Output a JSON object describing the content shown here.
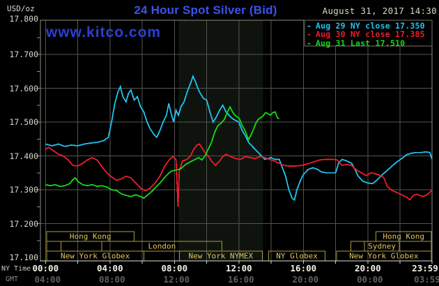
{
  "header": {
    "unit": "USD/oz",
    "title": "24 Hour Spot Silver (Bid)",
    "datetime": "August 31, 2017 14:30",
    "watermark": "www.kitco.com"
  },
  "legend": [
    {
      "label": "Aug 29 NY close 17.350",
      "color": "#1fc4f4"
    },
    {
      "label": "Aug 30 NY close 17.385",
      "color": "#f11c2c"
    },
    {
      "label": "Aug 31 Last 17.510",
      "color": "#14dc14"
    }
  ],
  "y_axis": {
    "tick_labels": [
      "17.800",
      "17.700",
      "17.600",
      "17.500",
      "17.400",
      "17.300",
      "17.200",
      "17.100"
    ],
    "tick_values": [
      17.8,
      17.7,
      17.6,
      17.5,
      17.4,
      17.3,
      17.2,
      17.1
    ]
  },
  "x_axis": {
    "ny_caption": "NY Time",
    "gmt_caption": "GMT",
    "ticks": [
      {
        "t": 0,
        "ny": "00:00",
        "gmt": "04:00"
      },
      {
        "t": 4,
        "ny": "04:00",
        "gmt": "08:00"
      },
      {
        "t": 8,
        "ny": "08:00",
        "gmt": "12:00"
      },
      {
        "t": 12,
        "ny": "12:00",
        "gmt": "16:00"
      },
      {
        "t": 16,
        "ny": "16:00",
        "gmt": "20:00"
      },
      {
        "t": 20,
        "ny": "20:00",
        "gmt": "00:00"
      },
      {
        "t": 23.983,
        "ny": "23:59",
        "gmt": "03:59"
      }
    ]
  },
  "sessions": {
    "rows": [
      [
        {
          "start": 0.07,
          "end": 5.5,
          "label": "Hong Kong"
        },
        {
          "start": 20.5,
          "end": 23.94,
          "label": "Hong Kong"
        }
      ],
      [
        {
          "start": 0.07,
          "end": 0.95,
          "label": ""
        },
        {
          "start": 0.95,
          "end": 3.5,
          "label": ""
        },
        {
          "start": 3.5,
          "end": 10.95,
          "label": "London"
        },
        {
          "start": 18.95,
          "end": 19.8,
          "label": ""
        },
        {
          "start": 19.8,
          "end": 21.95,
          "label": "Sydney"
        },
        {
          "start": 21.95,
          "end": 23.94,
          "label": ""
        }
      ],
      [
        {
          "start": 0.07,
          "end": 6.1,
          "label": "New York Globex"
        },
        {
          "start": 6.1,
          "end": 8.3,
          "label": ""
        },
        {
          "start": 8.3,
          "end": 13.45,
          "label": "New York NYMEX"
        },
        {
          "start": 13.85,
          "end": 17.35,
          "label": "NY Globex"
        },
        {
          "start": 18.05,
          "end": 23.94,
          "label": "New York Globex"
        }
      ]
    ]
  },
  "chart_data": {
    "type": "line",
    "title": "24 Hour Spot Silver (Bid)",
    "ylabel": "USD/oz",
    "xlabel": "NY Time (hours)",
    "ylim": [
      17.1,
      17.8
    ],
    "xlim": [
      0,
      24
    ],
    "grid": true,
    "legend_position": "top-right",
    "highlight_band_hours": [
      8.25,
      13.5
    ],
    "series": [
      {
        "name": "Aug 29 NY close 17.350",
        "color": "#1fc4f4",
        "points": [
          [
            0,
            17.435
          ],
          [
            0.4,
            17.43
          ],
          [
            0.8,
            17.435
          ],
          [
            1.2,
            17.428
          ],
          [
            1.6,
            17.432
          ],
          [
            2,
            17.43
          ],
          [
            2.4,
            17.435
          ],
          [
            2.8,
            17.438
          ],
          [
            3.2,
            17.44
          ],
          [
            3.6,
            17.445
          ],
          [
            3.9,
            17.455
          ],
          [
            4.1,
            17.5
          ],
          [
            4.3,
            17.555
          ],
          [
            4.5,
            17.59
          ],
          [
            4.65,
            17.605
          ],
          [
            4.8,
            17.575
          ],
          [
            5,
            17.56
          ],
          [
            5.15,
            17.585
          ],
          [
            5.3,
            17.595
          ],
          [
            5.5,
            17.565
          ],
          [
            5.7,
            17.575
          ],
          [
            5.9,
            17.545
          ],
          [
            6.1,
            17.53
          ],
          [
            6.3,
            17.5
          ],
          [
            6.5,
            17.48
          ],
          [
            6.7,
            17.465
          ],
          [
            6.9,
            17.455
          ],
          [
            7.1,
            17.475
          ],
          [
            7.3,
            17.5
          ],
          [
            7.5,
            17.52
          ],
          [
            7.65,
            17.555
          ],
          [
            7.8,
            17.525
          ],
          [
            7.95,
            17.5
          ],
          [
            8.1,
            17.535
          ],
          [
            8.25,
            17.52
          ],
          [
            8.4,
            17.545
          ],
          [
            8.6,
            17.56
          ],
          [
            8.8,
            17.59
          ],
          [
            9,
            17.615
          ],
          [
            9.15,
            17.635
          ],
          [
            9.3,
            17.62
          ],
          [
            9.45,
            17.6
          ],
          [
            9.6,
            17.585
          ],
          [
            9.8,
            17.57
          ],
          [
            10,
            17.565
          ],
          [
            10.2,
            17.53
          ],
          [
            10.4,
            17.5
          ],
          [
            10.6,
            17.515
          ],
          [
            10.8,
            17.535
          ],
          [
            11,
            17.55
          ],
          [
            11.2,
            17.53
          ],
          [
            11.4,
            17.52
          ],
          [
            11.6,
            17.51
          ],
          [
            11.8,
            17.505
          ],
          [
            12,
            17.5
          ],
          [
            12.2,
            17.475
          ],
          [
            12.4,
            17.46
          ],
          [
            12.6,
            17.44
          ],
          [
            12.8,
            17.43
          ],
          [
            13,
            17.42
          ],
          [
            13.2,
            17.41
          ],
          [
            13.4,
            17.4
          ],
          [
            13.6,
            17.39
          ],
          [
            13.8,
            17.392
          ],
          [
            14,
            17.395
          ],
          [
            14.2,
            17.39
          ],
          [
            14.5,
            17.39
          ],
          [
            14.7,
            17.365
          ],
          [
            14.9,
            17.34
          ],
          [
            15.1,
            17.3
          ],
          [
            15.3,
            17.275
          ],
          [
            15.45,
            17.27
          ],
          [
            15.6,
            17.3
          ],
          [
            15.8,
            17.325
          ],
          [
            16,
            17.345
          ],
          [
            16.3,
            17.36
          ],
          [
            16.6,
            17.365
          ],
          [
            16.9,
            17.36
          ],
          [
            17.1,
            17.353
          ],
          [
            17.4,
            17.35
          ],
          [
            17.7,
            17.35
          ],
          [
            18,
            17.35
          ],
          [
            18.2,
            17.38
          ],
          [
            18.4,
            17.39
          ],
          [
            18.7,
            17.385
          ],
          [
            19,
            17.378
          ],
          [
            19.2,
            17.36
          ],
          [
            19.4,
            17.34
          ],
          [
            19.7,
            17.325
          ],
          [
            20,
            17.32
          ],
          [
            20.3,
            17.318
          ],
          [
            20.6,
            17.33
          ],
          [
            20.9,
            17.345
          ],
          [
            21.2,
            17.357
          ],
          [
            21.5,
            17.37
          ],
          [
            21.8,
            17.382
          ],
          [
            22.1,
            17.392
          ],
          [
            22.4,
            17.403
          ],
          [
            22.7,
            17.408
          ],
          [
            23,
            17.41
          ],
          [
            23.3,
            17.41
          ],
          [
            23.6,
            17.412
          ],
          [
            23.85,
            17.41
          ],
          [
            23.983,
            17.39
          ]
        ]
      },
      {
        "name": "Aug 30 NY close 17.385",
        "color": "#f11c2c",
        "points": [
          [
            0,
            17.42
          ],
          [
            0.2,
            17.425
          ],
          [
            0.5,
            17.415
          ],
          [
            0.8,
            17.405
          ],
          [
            1.1,
            17.4
          ],
          [
            1.4,
            17.388
          ],
          [
            1.7,
            17.372
          ],
          [
            2,
            17.37
          ],
          [
            2.3,
            17.378
          ],
          [
            2.6,
            17.388
          ],
          [
            2.9,
            17.395
          ],
          [
            3.2,
            17.388
          ],
          [
            3.5,
            17.368
          ],
          [
            3.8,
            17.35
          ],
          [
            4.1,
            17.338
          ],
          [
            4.4,
            17.328
          ],
          [
            4.7,
            17.332
          ],
          [
            5,
            17.34
          ],
          [
            5.3,
            17.335
          ],
          [
            5.6,
            17.32
          ],
          [
            5.9,
            17.305
          ],
          [
            6.2,
            17.297
          ],
          [
            6.5,
            17.305
          ],
          [
            6.8,
            17.32
          ],
          [
            7.1,
            17.34
          ],
          [
            7.4,
            17.37
          ],
          [
            7.7,
            17.39
          ],
          [
            7.9,
            17.398
          ],
          [
            8.1,
            17.39
          ],
          [
            8.18,
            17.3
          ],
          [
            8.22,
            17.25
          ],
          [
            8.3,
            17.355
          ],
          [
            8.5,
            17.385
          ],
          [
            8.8,
            17.39
          ],
          [
            9,
            17.4
          ],
          [
            9.2,
            17.42
          ],
          [
            9.4,
            17.432
          ],
          [
            9.55,
            17.435
          ],
          [
            9.7,
            17.425
          ],
          [
            9.9,
            17.41
          ],
          [
            10.1,
            17.4
          ],
          [
            10.3,
            17.385
          ],
          [
            10.55,
            17.372
          ],
          [
            10.8,
            17.385
          ],
          [
            11,
            17.398
          ],
          [
            11.2,
            17.405
          ],
          [
            11.5,
            17.398
          ],
          [
            11.8,
            17.392
          ],
          [
            12.1,
            17.39
          ],
          [
            12.4,
            17.398
          ],
          [
            12.7,
            17.395
          ],
          [
            13,
            17.392
          ],
          [
            13.3,
            17.398
          ],
          [
            13.6,
            17.395
          ],
          [
            13.9,
            17.39
          ],
          [
            14.2,
            17.385
          ],
          [
            14.5,
            17.378
          ],
          [
            14.8,
            17.372
          ],
          [
            15.1,
            17.37
          ],
          [
            15.5,
            17.37
          ],
          [
            15.9,
            17.372
          ],
          [
            16.3,
            17.377
          ],
          [
            16.7,
            17.383
          ],
          [
            17,
            17.388
          ],
          [
            17.4,
            17.39
          ],
          [
            17.8,
            17.39
          ],
          [
            18.1,
            17.388
          ],
          [
            18.4,
            17.372
          ],
          [
            18.7,
            17.375
          ],
          [
            19,
            17.372
          ],
          [
            19.3,
            17.358
          ],
          [
            19.6,
            17.35
          ],
          [
            19.9,
            17.342
          ],
          [
            20.2,
            17.35
          ],
          [
            20.5,
            17.347
          ],
          [
            20.8,
            17.342
          ],
          [
            21,
            17.335
          ],
          [
            21.2,
            17.31
          ],
          [
            21.5,
            17.298
          ],
          [
            21.8,
            17.292
          ],
          [
            22.1,
            17.285
          ],
          [
            22.4,
            17.278
          ],
          [
            22.6,
            17.27
          ],
          [
            22.8,
            17.282
          ],
          [
            23,
            17.287
          ],
          [
            23.2,
            17.284
          ],
          [
            23.4,
            17.28
          ],
          [
            23.6,
            17.283
          ],
          [
            23.8,
            17.29
          ],
          [
            23.983,
            17.3
          ]
        ]
      },
      {
        "name": "Aug 31 Last 17.510",
        "color": "#14dc14",
        "points": [
          [
            0,
            17.315
          ],
          [
            0.3,
            17.312
          ],
          [
            0.6,
            17.315
          ],
          [
            0.9,
            17.31
          ],
          [
            1.2,
            17.312
          ],
          [
            1.5,
            17.318
          ],
          [
            1.7,
            17.33
          ],
          [
            1.85,
            17.335
          ],
          [
            2,
            17.325
          ],
          [
            2.3,
            17.315
          ],
          [
            2.6,
            17.312
          ],
          [
            2.9,
            17.315
          ],
          [
            3.2,
            17.31
          ],
          [
            3.5,
            17.312
          ],
          [
            3.8,
            17.308
          ],
          [
            4.1,
            17.3
          ],
          [
            4.4,
            17.298
          ],
          [
            4.7,
            17.288
          ],
          [
            5,
            17.283
          ],
          [
            5.3,
            17.28
          ],
          [
            5.6,
            17.285
          ],
          [
            5.9,
            17.28
          ],
          [
            6.1,
            17.275
          ],
          [
            6.35,
            17.285
          ],
          [
            6.6,
            17.295
          ],
          [
            6.9,
            17.31
          ],
          [
            7.2,
            17.325
          ],
          [
            7.5,
            17.342
          ],
          [
            7.8,
            17.355
          ],
          [
            8.1,
            17.358
          ],
          [
            8.4,
            17.362
          ],
          [
            8.7,
            17.375
          ],
          [
            9,
            17.383
          ],
          [
            9.3,
            17.39
          ],
          [
            9.5,
            17.395
          ],
          [
            9.7,
            17.388
          ],
          [
            9.9,
            17.4
          ],
          [
            10.1,
            17.42
          ],
          [
            10.3,
            17.44
          ],
          [
            10.5,
            17.47
          ],
          [
            10.7,
            17.49
          ],
          [
            10.9,
            17.497
          ],
          [
            11.1,
            17.508
          ],
          [
            11.3,
            17.53
          ],
          [
            11.45,
            17.545
          ],
          [
            11.6,
            17.53
          ],
          [
            11.75,
            17.52
          ],
          [
            11.9,
            17.515
          ],
          [
            12.05,
            17.508
          ],
          [
            12.2,
            17.49
          ],
          [
            12.35,
            17.478
          ],
          [
            12.5,
            17.46
          ],
          [
            12.6,
            17.448
          ],
          [
            12.75,
            17.462
          ],
          [
            12.9,
            17.478
          ],
          [
            13.05,
            17.496
          ],
          [
            13.2,
            17.508
          ],
          [
            13.35,
            17.513
          ],
          [
            13.5,
            17.518
          ],
          [
            13.65,
            17.528
          ],
          [
            13.8,
            17.525
          ],
          [
            13.95,
            17.52
          ],
          [
            14.1,
            17.528
          ],
          [
            14.25,
            17.53
          ],
          [
            14.4,
            17.512
          ],
          [
            14.5,
            17.51
          ]
        ]
      }
    ]
  },
  "colors": {
    "background": "#000000",
    "grid": "#54544e",
    "plot_border": "#8c8c84",
    "axis_bottom": "#dcdcd4",
    "band": "#0e140d",
    "session_border": "#ab9b3f",
    "session_text": "#dec561",
    "legend_box": "#74746c"
  }
}
